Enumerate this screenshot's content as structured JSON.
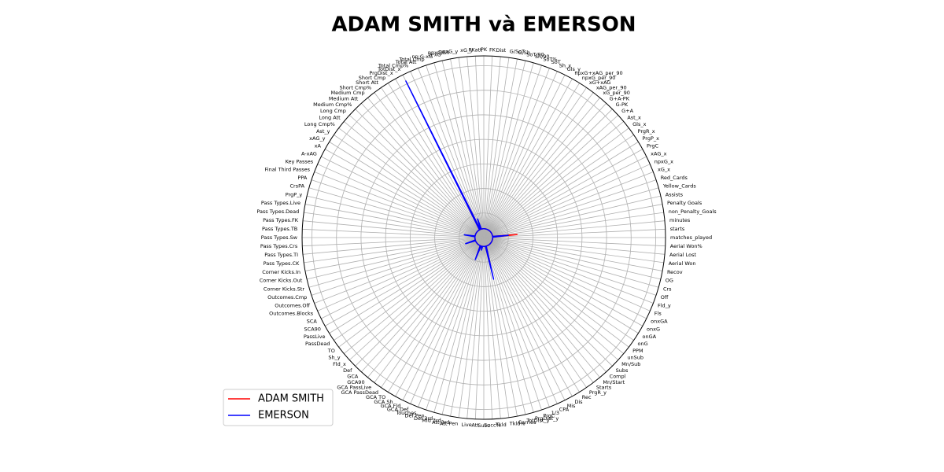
{
  "chart_data": {
    "type": "radar",
    "title": "ADAM SMITH và EMERSON",
    "categories": [
      "matches_played",
      "starts",
      "minutes",
      "non_Penalty_Goals",
      "Penalty Goals",
      "Assists",
      "Yellow_Cards",
      "Red_Cards",
      "xG_x",
      "npxG_x",
      "xAG_x",
      "PrgC",
      "PrgP_x",
      "PrgR_x",
      "Gls_x",
      "Ast_x",
      "G+A",
      "G-PK",
      "G+A-PK",
      "xG_per_90",
      "xAG_per_90",
      "xG+xAG",
      "npxG_per_90",
      "npxG+xAG_per_90",
      "Gls_y",
      "Sh_x",
      "SoT",
      "SoT%",
      "Sh/90",
      "SoT/90",
      "G/Sh",
      "G/SoT",
      "Dist",
      "FK",
      "PK",
      "PKatt",
      "xG_y",
      "npxG_y",
      "npxG/Sh",
      "G-xG",
      "np:G-xG",
      "Total Cmp",
      "Total Att",
      "Total Cmp%",
      "TotDist_x",
      "PrgDist_x",
      "Short Cmp",
      "Short Att",
      "Short Cmp%",
      "Medium Cmp",
      "Medium Att",
      "Medium Cmp%",
      "Long Cmp",
      "Long Att",
      "Long Cmp%",
      "Ast_y",
      "xAG_y",
      "xA",
      "A-xAG",
      "Key Passes",
      "Final Third Passes",
      "PPA",
      "CrsPA",
      "PrgP_y",
      "Pass Types.Live",
      "Pass Types.Dead",
      "Pass Types.FK",
      "Pass Types.TB",
      "Pass Types.Sw",
      "Pass Types.Crs",
      "Pass Types.TI",
      "Pass Types.CK",
      "Corner Kicks.In",
      "Corner Kicks.Out",
      "Corner Kicks.Str",
      "Outcomes.Cmp",
      "Outcomes.Off",
      "Outcomes.Blocks",
      "SCA",
      "SCA90",
      "PassLive",
      "PassDead",
      "TO",
      "Sh_y",
      "Fld_x",
      "Def",
      "GCA",
      "GCA90",
      "GCA PassLive",
      "GCA PassDead",
      "GCA TO",
      "GCA Sh",
      "GCA Fld",
      "GCA Def",
      "Touches",
      "Def Pen",
      "Def 3rd",
      "Mid 3rd",
      "Att 3rd",
      "Att Pen",
      "Live",
      "Att",
      "Succ",
      "Succ%",
      "Tkld",
      "Tkld%",
      "Carries",
      "TotDist_y",
      "PrgDist_y",
      "PrgC",
      "1/3",
      "CPA",
      "Mis",
      "Dis",
      "Rec",
      "PrgR_y",
      "Starts",
      "Mn/Start",
      "Compl",
      "Subs",
      "Mn/Sub",
      "unSub",
      "PPM",
      "onG",
      "onGA",
      "onxG",
      "onxGA",
      "Fls",
      "Fld_y",
      "Off",
      "Crs",
      "OG",
      "Recov",
      "Aerial Won",
      "Aerial Lost",
      "Aerial Won%"
    ],
    "series": [
      {
        "name": "ADAM SMITH",
        "color": "#ff0000",
        "values": [
          90,
          90,
          340,
          90,
          90,
          90,
          90,
          90,
          90,
          90,
          90,
          90,
          90,
          90,
          90,
          90,
          90,
          90,
          90,
          90,
          90,
          90,
          90,
          90,
          90,
          90,
          90,
          90,
          90,
          90,
          90,
          90,
          90,
          90,
          90,
          90,
          90,
          90,
          90,
          90,
          90,
          150,
          90,
          90,
          900,
          90,
          90,
          90,
          90,
          90,
          90,
          90,
          90,
          90,
          90,
          90,
          90,
          90,
          90,
          90,
          90,
          90,
          90,
          90,
          90,
          120,
          90,
          90,
          90,
          90,
          90,
          90,
          90,
          90,
          90,
          120,
          90,
          90,
          90,
          90,
          90,
          90,
          90,
          90,
          90,
          90,
          90,
          90,
          90,
          90,
          90,
          90,
          90,
          90,
          200,
          90,
          90,
          90,
          110,
          90,
          90,
          90,
          90,
          90,
          90,
          90,
          90,
          300,
          90,
          90,
          90,
          90,
          90,
          90,
          90,
          90,
          90,
          90,
          90,
          90,
          90,
          90,
          90,
          90,
          90,
          90,
          90,
          90,
          90,
          90,
          90,
          90,
          90,
          90,
          90,
          90
        ]
      },
      {
        "name": "EMERSON",
        "color": "#0000ff",
        "values": [
          90,
          90,
          250,
          90,
          90,
          90,
          90,
          90,
          90,
          90,
          90,
          90,
          90,
          90,
          90,
          90,
          90,
          90,
          90,
          90,
          90,
          90,
          90,
          90,
          90,
          90,
          90,
          90,
          90,
          90,
          90,
          90,
          90,
          90,
          90,
          90,
          90,
          90,
          90,
          90,
          90,
          200,
          90,
          90,
          1780,
          90,
          90,
          90,
          90,
          90,
          90,
          90,
          90,
          90,
          90,
          90,
          90,
          90,
          90,
          90,
          90,
          90,
          90,
          90,
          90,
          200,
          90,
          90,
          90,
          90,
          90,
          90,
          90,
          90,
          90,
          195,
          90,
          90,
          90,
          90,
          90,
          90,
          90,
          90,
          90,
          90,
          90,
          90,
          90,
          90,
          90,
          90,
          90,
          90,
          240,
          90,
          90,
          90,
          130,
          90,
          90,
          90,
          90,
          90,
          90,
          90,
          90,
          435,
          90,
          90,
          90,
          90,
          90,
          90,
          90,
          90,
          90,
          90,
          90,
          90,
          90,
          90,
          90,
          90,
          90,
          90,
          90,
          90,
          90,
          90,
          90,
          90,
          90,
          90,
          90,
          90
        ]
      }
    ],
    "ylim": [
      0,
      1850
    ],
    "yticks": [
      250,
      500,
      750,
      1000,
      1250,
      1500,
      1750
    ],
    "grid": true,
    "legend": "lower left"
  }
}
